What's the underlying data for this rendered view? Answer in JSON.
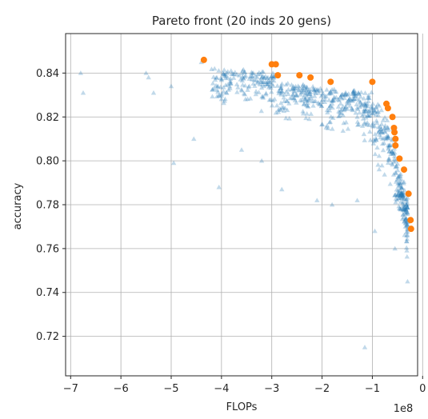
{
  "chart_data": {
    "type": "scatter",
    "title": "Pareto front (20 inds 20 gens)",
    "xlabel": "FLOPs",
    "ylabel": "accuracy",
    "x_offset_label": "1e8",
    "xlim": [
      -7.1,
      -0.1
    ],
    "ylim": [
      0.702,
      0.858
    ],
    "xticks": [
      -7,
      -6,
      -5,
      -4,
      -3,
      -2,
      -1,
      0
    ],
    "xtick_labels": [
      "−7",
      "−6",
      "−5",
      "−4",
      "−3",
      "−2",
      "−1",
      "0"
    ],
    "yticks": [
      0.72,
      0.74,
      0.76,
      0.78,
      0.8,
      0.82,
      0.84
    ],
    "ytick_labels": [
      "0.72",
      "0.74",
      "0.76",
      "0.78",
      "0.80",
      "0.82",
      "0.84"
    ],
    "grid": true,
    "colors": {
      "population": "#1f77b4",
      "pareto": "#ff7f0e"
    },
    "pareto_front": [
      {
        "x": -4.35,
        "y": 0.846
      },
      {
        "x": -3.0,
        "y": 0.844
      },
      {
        "x": -2.92,
        "y": 0.844
      },
      {
        "x": -2.88,
        "y": 0.839
      },
      {
        "x": -2.45,
        "y": 0.839
      },
      {
        "x": -2.23,
        "y": 0.838
      },
      {
        "x": -1.83,
        "y": 0.836
      },
      {
        "x": -1.0,
        "y": 0.836
      },
      {
        "x": -0.72,
        "y": 0.826
      },
      {
        "x": -0.69,
        "y": 0.824
      },
      {
        "x": -0.6,
        "y": 0.82
      },
      {
        "x": -0.57,
        "y": 0.815
      },
      {
        "x": -0.56,
        "y": 0.813
      },
      {
        "x": -0.54,
        "y": 0.81
      },
      {
        "x": -0.54,
        "y": 0.807
      },
      {
        "x": -0.46,
        "y": 0.801
      },
      {
        "x": -0.37,
        "y": 0.796
      },
      {
        "x": -0.28,
        "y": 0.785
      },
      {
        "x": -0.24,
        "y": 0.773
      },
      {
        "x": -0.23,
        "y": 0.769
      }
    ],
    "population_sample": [
      {
        "x": -6.8,
        "y": 0.84
      },
      {
        "x": -6.75,
        "y": 0.831
      },
      {
        "x": -5.5,
        "y": 0.84
      },
      {
        "x": -5.45,
        "y": 0.838
      },
      {
        "x": -5.35,
        "y": 0.831
      },
      {
        "x": -5.0,
        "y": 0.834
      },
      {
        "x": -4.95,
        "y": 0.799
      },
      {
        "x": -4.55,
        "y": 0.81
      },
      {
        "x": -4.4,
        "y": 0.845
      },
      {
        "x": -4.05,
        "y": 0.788
      },
      {
        "x": -3.6,
        "y": 0.805
      },
      {
        "x": -3.2,
        "y": 0.8
      },
      {
        "x": -2.8,
        "y": 0.787
      },
      {
        "x": -2.1,
        "y": 0.782
      },
      {
        "x": -1.8,
        "y": 0.78
      },
      {
        "x": -1.3,
        "y": 0.782
      },
      {
        "x": -0.95,
        "y": 0.768
      },
      {
        "x": -0.55,
        "y": 0.76
      },
      {
        "x": -0.3,
        "y": 0.745
      },
      {
        "x": -1.15,
        "y": 0.715
      }
    ]
  }
}
